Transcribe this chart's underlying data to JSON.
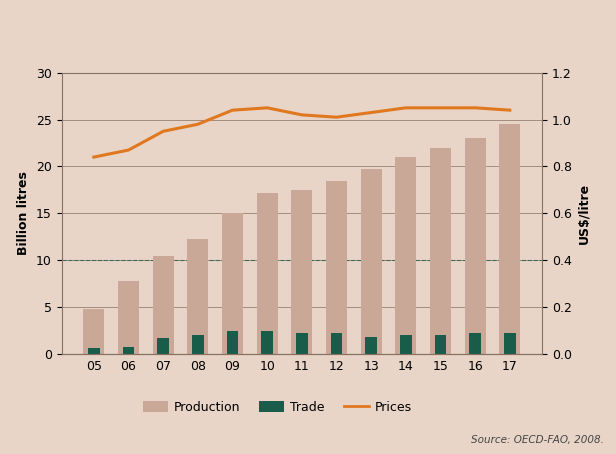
{
  "years": [
    "05",
    "06",
    "07",
    "08",
    "09",
    "10",
    "11",
    "12",
    "13",
    "14",
    "15",
    "16",
    "17"
  ],
  "production": [
    4.8,
    7.8,
    10.5,
    12.3,
    15.0,
    17.2,
    17.5,
    18.5,
    19.7,
    21.0,
    22.0,
    23.0,
    24.5
  ],
  "trade": [
    0.6,
    0.8,
    1.7,
    2.0,
    2.5,
    2.5,
    2.2,
    2.2,
    1.8,
    2.0,
    2.0,
    2.2,
    2.2
  ],
  "prices": [
    0.84,
    0.87,
    0.95,
    0.98,
    1.04,
    1.05,
    1.02,
    1.01,
    1.03,
    1.05,
    1.05,
    1.05,
    1.04
  ],
  "production_color": "#c9a898",
  "trade_color": "#1a5c4a",
  "prices_color": "#e07820",
  "bg_color_chart": "#e8d5c8",
  "bg_color_legend": "#c8a898",
  "left_ylim": [
    0,
    30
  ],
  "right_ylim": [
    0.0,
    1.2
  ],
  "left_yticks": [
    0,
    5,
    10,
    15,
    20,
    25,
    30
  ],
  "right_yticks": [
    0.0,
    0.2,
    0.4,
    0.6,
    0.8,
    1.0,
    1.2
  ],
  "left_ylabel": "Billion litres",
  "right_ylabel": "US$/litre",
  "source_text": "Source: OECD-FAO, 2008.",
  "dashed_line_y": 0.4,
  "dashed_line_color": "#1a5c4a"
}
